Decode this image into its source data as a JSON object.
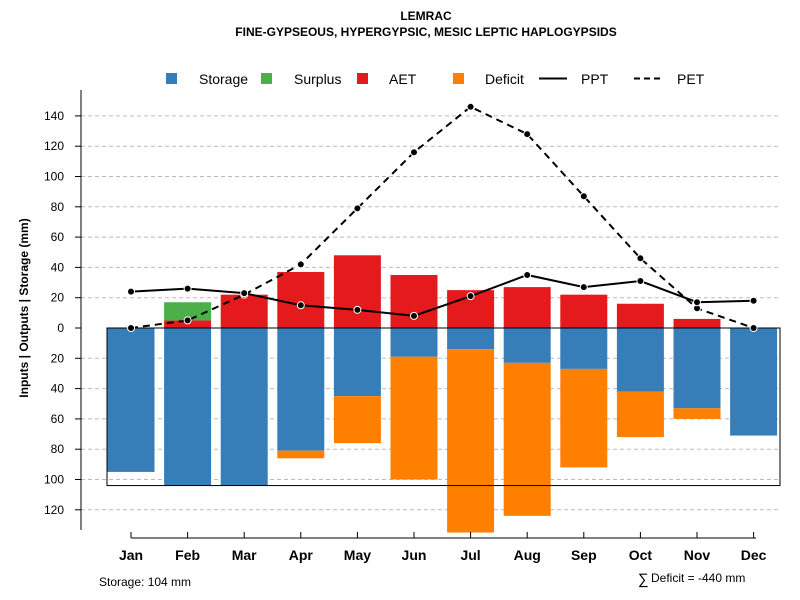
{
  "chart_data": {
    "type": "bar",
    "title": "LEMRAC",
    "subtitle": "FINE-GYPSEOUS, HYPERGYPSIC, MESIC LEPTIC HAPLOGYPSIDS",
    "ylabel": "Inputs | Outputs | Storage    (mm)",
    "categories": [
      "Jan",
      "Feb",
      "Mar",
      "Apr",
      "May",
      "Jun",
      "Jul",
      "Aug",
      "Sep",
      "Oct",
      "Nov",
      "Dec"
    ],
    "ylim": [
      -130,
      150
    ],
    "yticks": [
      140,
      120,
      100,
      80,
      60,
      40,
      20,
      0,
      -20,
      -40,
      -60,
      -80,
      -100,
      -120
    ],
    "ytick_labels": [
      "140",
      "120",
      "100",
      "80",
      "60",
      "40",
      "20",
      "0",
      "20",
      "40",
      "60",
      "80",
      "100",
      "120"
    ],
    "legend": [
      "Storage",
      "Surplus",
      "AET",
      "Deficit",
      "PPT",
      "PET"
    ],
    "colors": {
      "storage": "#377eb8",
      "surplus": "#4daf4a",
      "aet": "#e41a1c",
      "deficit": "#ff7f00",
      "line": "#000000",
      "grid": "#bbbbbb"
    },
    "series": [
      {
        "name": "Storage",
        "values": [
          95,
          104,
          104,
          81,
          45,
          19,
          14,
          23,
          27,
          42,
          53,
          71
        ]
      },
      {
        "name": "Surplus",
        "values": [
          0,
          12,
          0,
          0,
          0,
          0,
          0,
          0,
          0,
          0,
          0,
          0
        ]
      },
      {
        "name": "AET",
        "values": [
          0,
          5,
          22,
          37,
          48,
          35,
          25,
          27,
          22,
          16,
          6,
          0
        ]
      },
      {
        "name": "Deficit",
        "values": [
          0,
          0,
          0,
          5,
          31,
          81,
          121,
          101,
          65,
          30,
          7,
          0
        ]
      },
      {
        "name": "PPT",
        "values": [
          24,
          26,
          23,
          15,
          12,
          8,
          21,
          35,
          27,
          31,
          17,
          18
        ]
      },
      {
        "name": "PET",
        "values": [
          0,
          5,
          22,
          42,
          79,
          116,
          146,
          128,
          87,
          46,
          13,
          0
        ]
      }
    ],
    "storage_capacity": 104
  },
  "footer": {
    "storage_note": "Storage: 104 mm",
    "deficit_symbol": "∑",
    "deficit_note": "Deficit = -440 mm"
  }
}
